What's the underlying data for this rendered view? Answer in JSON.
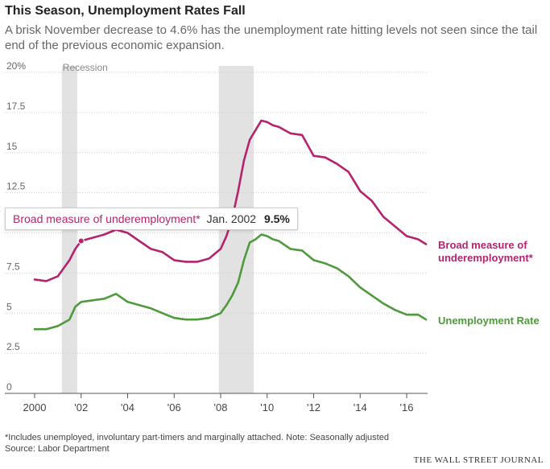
{
  "title": "This Season, Unemployment Rates Fall",
  "subtitle": "A brisk November decrease to 4.6% has the unemployment rate hitting levels not seen since the tail end of the previous economic expansion.",
  "colors": {
    "broad": "#b5236e",
    "unemployment": "#4e9a3c",
    "recession": "#e2e2e2",
    "grid": "#cccccc"
  },
  "tooltip": {
    "series": "Broad measure of underemployment*",
    "date": "Jan. 2002",
    "value": "9.5%"
  },
  "footnote": "*Includes unemployed, involuntary part-timers and marginally attached. Note: Seasonally adjusted",
  "source": "Source: Labor Department",
  "brand": "THE WALL STREET JOURNAL",
  "chart_data": {
    "type": "line",
    "title": "This Season, Unemployment Rates Fall",
    "xlabel": "",
    "ylabel": "",
    "xlim": [
      2000,
      2016.9
    ],
    "ylim": [
      0,
      20
    ],
    "grid": true,
    "y_ticks": [
      {
        "value": 20,
        "label": "20%"
      },
      {
        "value": 17.5,
        "label": "17.5"
      },
      {
        "value": 15,
        "label": "15"
      },
      {
        "value": 12.5,
        "label": "12.5"
      },
      {
        "value": 10,
        "label": "10"
      },
      {
        "value": 7.5,
        "label": "7.5"
      },
      {
        "value": 5,
        "label": "5"
      },
      {
        "value": 2.5,
        "label": "2.5"
      },
      {
        "value": 0,
        "label": "0"
      }
    ],
    "x_ticks": [
      {
        "value": 2000,
        "label": "2000"
      },
      {
        "value": 2002,
        "label": "'02"
      },
      {
        "value": 2004,
        "label": "'04"
      },
      {
        "value": 2006,
        "label": "'06"
      },
      {
        "value": 2008,
        "label": "'08"
      },
      {
        "value": 2010,
        "label": "'10"
      },
      {
        "value": 2012,
        "label": "'12"
      },
      {
        "value": 2014,
        "label": "'14"
      },
      {
        "value": 2016,
        "label": "'16"
      }
    ],
    "recession_label": "Recession",
    "recessions": [
      [
        2001.17,
        2001.83
      ],
      [
        2007.92,
        2009.42
      ]
    ],
    "series": [
      {
        "name": "Broad measure of underemployment*",
        "label": "Broad measure of\nunderemployment*",
        "color": "#b5236e",
        "x": [
          2000.0,
          2000.5,
          2001.0,
          2001.25,
          2001.5,
          2001.75,
          2002.0,
          2002.5,
          2003.0,
          2003.5,
          2004.0,
          2004.5,
          2005.0,
          2005.5,
          2006.0,
          2006.5,
          2007.0,
          2007.5,
          2008.0,
          2008.25,
          2008.5,
          2008.75,
          2009.0,
          2009.25,
          2009.5,
          2009.75,
          2010.0,
          2010.25,
          2010.5,
          2011.0,
          2011.5,
          2012.0,
          2012.5,
          2013.0,
          2013.5,
          2014.0,
          2014.5,
          2015.0,
          2015.5,
          2016.0,
          2016.5,
          2016.83
        ],
        "values": [
          7.1,
          7.0,
          7.3,
          7.8,
          8.3,
          9.0,
          9.5,
          9.7,
          9.9,
          10.2,
          10.0,
          9.5,
          9.0,
          8.8,
          8.3,
          8.2,
          8.2,
          8.4,
          9.0,
          9.8,
          10.9,
          12.6,
          14.5,
          15.8,
          16.4,
          17.0,
          16.9,
          16.7,
          16.6,
          16.2,
          16.1,
          14.8,
          14.7,
          14.3,
          13.8,
          12.6,
          12.0,
          11.0,
          10.4,
          9.8,
          9.6,
          9.3
        ]
      },
      {
        "name": "Unemployment Rate",
        "label": "Unemployment Rate",
        "color": "#4e9a3c",
        "x": [
          2000.0,
          2000.5,
          2001.0,
          2001.25,
          2001.5,
          2001.75,
          2002.0,
          2002.5,
          2003.0,
          2003.5,
          2004.0,
          2004.5,
          2005.0,
          2005.5,
          2006.0,
          2006.5,
          2007.0,
          2007.5,
          2008.0,
          2008.25,
          2008.5,
          2008.75,
          2009.0,
          2009.25,
          2009.5,
          2009.75,
          2010.0,
          2010.25,
          2010.5,
          2011.0,
          2011.5,
          2012.0,
          2012.5,
          2013.0,
          2013.5,
          2014.0,
          2014.5,
          2015.0,
          2015.5,
          2016.0,
          2016.5,
          2016.83
        ],
        "values": [
          4.0,
          4.0,
          4.2,
          4.4,
          4.6,
          5.4,
          5.7,
          5.8,
          5.9,
          6.2,
          5.7,
          5.5,
          5.3,
          5.0,
          4.7,
          4.6,
          4.6,
          4.7,
          5.0,
          5.5,
          6.1,
          6.9,
          8.3,
          9.4,
          9.6,
          9.9,
          9.8,
          9.6,
          9.5,
          9.0,
          8.9,
          8.3,
          8.1,
          7.8,
          7.3,
          6.6,
          6.1,
          5.6,
          5.2,
          4.9,
          4.9,
          4.6
        ]
      }
    ]
  }
}
